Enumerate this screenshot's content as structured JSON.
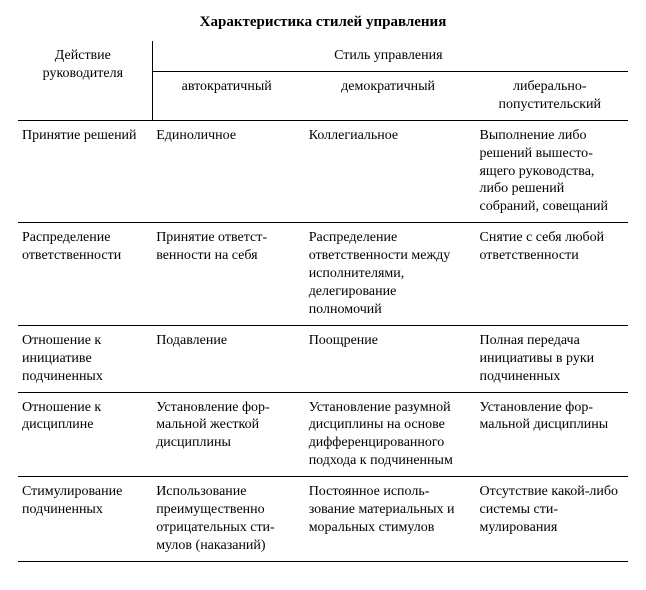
{
  "title": "Характеристика стилей управления",
  "header": {
    "row0_col": "Действие руководителя",
    "style_group": "Стиль управления",
    "styles": {
      "autocratic": "автократичный",
      "democratic": "демократичный",
      "liberal": "либерально-попустительский"
    }
  },
  "rows": [
    {
      "action": "Принятие решений",
      "autocratic": "Единоличное",
      "democratic": "Коллегиальное",
      "liberal": "Выполнение либо решений вышесто­ящего руковод­ства, либо реше­ний собраний, со­вещаний"
    },
    {
      "action": "Распределение ответственности",
      "autocratic": "Принятие ответст­венности на себя",
      "democratic": "Распределение ответственности между исполнителя­ми, делегирование полномочий",
      "liberal": "Снятие с себя лю­бой ответствен­ности"
    },
    {
      "action": "Отношение к инициативе подчиненных",
      "autocratic": "Подавление",
      "democratic": "Поощрение",
      "liberal": "Полная передача инициативы в руки подчиненных"
    },
    {
      "action": "Отношение к дисциплине",
      "autocratic": "Установление фор­мальной жесткой дисциплины",
      "democratic": "Установление разум­ной дисциплины на основе дифферен­цированного подхода к подчиненным",
      "liberal": "Установление фор­мальной дисцип­лины"
    },
    {
      "action": "Стимулирование подчиненных",
      "autocratic": "Использование преимущественно отрицательных сти­мулов (наказаний)",
      "democratic": "Постоянное исполь­зование материаль­ных и моральных сти­мулов",
      "liberal": "Отсутствие какой-либо системы сти­мулирования"
    }
  ]
}
